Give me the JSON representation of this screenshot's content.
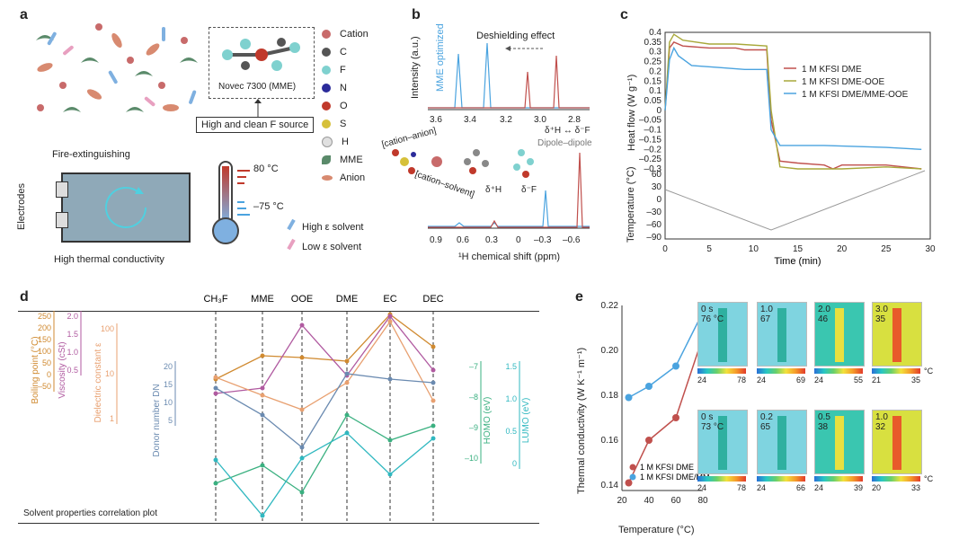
{
  "panel_a": {
    "letter": "a",
    "legend": [
      "Cation",
      "C",
      "F",
      "N",
      "O",
      "S",
      "H",
      "MME",
      "Anion",
      "High ε solvent",
      "Low ε solvent"
    ],
    "legend_colors": [
      "#c86a6a",
      "#555555",
      "#7fd1cf",
      "#2b2b9a",
      "#c0392b",
      "#d6c03a",
      "#e0e0e0",
      "#5a8a6a",
      "#d88a70",
      "#7fb0e0",
      "#e8a0c0"
    ],
    "molecule_label": "Novec 7300 (MME)",
    "f_source": "High and clean F source",
    "fire": "Fire-extinguishing",
    "electrodes": "Electrodes",
    "temp_high": "80 °C",
    "temp_low": "–75 °C",
    "thermal": "High thermal conductivity"
  },
  "panel_b": {
    "letter": "b",
    "ylabel": "Intensity (a.u.)",
    "mme_opt": "MME optimized",
    "deshield": "Deshielding effect",
    "top_ticks": [
      "3.6",
      "3.4",
      "3.2",
      "3.0",
      "2.8"
    ],
    "bottom_ticks": [
      "0.9",
      "0.6",
      "0.3",
      "0",
      "–0.3",
      "–0.6"
    ],
    "xlabel": "¹H chemical shift (ppm)",
    "cation_anion": "[cation–anion]",
    "cation_solvent": "[cation–solvent]",
    "dipole": "Dipole–dipole",
    "dh": "δ⁺H",
    "df": "δ⁻F",
    "dhdf": "δ⁺H ↔ δ⁻F"
  },
  "panel_c": {
    "letter": "c",
    "ylabel_top": "Heat flow (W g⁻¹)",
    "ylabel_bottom": "Temperature (°C)",
    "xlabel": "Time (min)",
    "yticks_top": [
      "0.4",
      "0.35",
      "0.3",
      "0.25",
      "0.2",
      "0.15",
      "0.1",
      "0.05",
      "0",
      "–0.05",
      "–0.1",
      "–0.15",
      "–0.2",
      "–0.25",
      "–0.3"
    ],
    "yticks_bottom": [
      "60",
      "30",
      "0",
      "–30",
      "–60",
      "–90"
    ],
    "xticks": [
      "0",
      "5",
      "10",
      "15",
      "20",
      "25",
      "30"
    ],
    "legend": [
      "1 M KFSI DME",
      "1 M KFSI DME-OOE",
      "1 M KFSI DME/MME-OOE"
    ],
    "colors": [
      "#c0504d",
      "#a8a83a",
      "#4aa3df"
    ]
  },
  "panel_d": {
    "letter": "d",
    "solvents": [
      "CH₃F",
      "MME",
      "OOE",
      "DME",
      "EC",
      "DEC"
    ],
    "axes": [
      "Boiling point (°C)",
      "Viscosity (cSt)",
      "Dielectric constant ε",
      "Donor number DN",
      "HOMO (eV)",
      "LUMO (eV)"
    ],
    "bp_ticks": [
      "250",
      "200",
      "150",
      "100",
      "50",
      "0",
      "–50"
    ],
    "visc_ticks": [
      "2.0",
      "1.5",
      "1.0",
      "0.5"
    ],
    "eps_ticks": [
      "100",
      "10",
      "1"
    ],
    "dn_ticks": [
      "20",
      "15",
      "10",
      "5"
    ],
    "homo_ticks": [
      "–7",
      "–8",
      "–9",
      "–10"
    ],
    "lumo_ticks": [
      "1.5",
      "1.0",
      "0.5",
      "0"
    ],
    "caption": "Solvent properties correlation plot"
  },
  "panel_e": {
    "letter": "e",
    "ylabel": "Thermal conductivity (W K⁻¹ m⁻¹)",
    "xlabel": "Temperature (°C)",
    "legend": [
      "1 M KFSI DME",
      "1 M KFSI DME/MME-OOE"
    ],
    "yticks": [
      "0.22",
      "0.20",
      "0.18",
      "0.16",
      "0.14"
    ],
    "xticks": [
      "20",
      "40",
      "60",
      "80"
    ],
    "heat_top": [
      {
        "t": "0 s",
        "v": "76 °C",
        "lo": "24",
        "hi": "78"
      },
      {
        "t": "1.0",
        "v": "67",
        "lo": "24",
        "hi": "69"
      },
      {
        "t": "2.0",
        "v": "46",
        "lo": "24",
        "hi": "55"
      },
      {
        "t": "3.0",
        "v": "35",
        "lo": "21",
        "hi": "35"
      }
    ],
    "heat_bottom": [
      {
        "t": "0 s",
        "v": "73 °C",
        "lo": "24",
        "hi": "78"
      },
      {
        "t": "0.2",
        "v": "65",
        "lo": "24",
        "hi": "66"
      },
      {
        "t": "0.5",
        "v": "38",
        "lo": "24",
        "hi": "39"
      },
      {
        "t": "1.0",
        "v": "32",
        "lo": "20",
        "hi": "33"
      }
    ],
    "unit": "°C"
  },
  "chart_data": [
    {
      "type": "line",
      "panel": "c",
      "xlabel": "Time (min)",
      "ylabel": "Heat flow (W g⁻¹)",
      "xlim": [
        0,
        30
      ],
      "ylim": [
        -0.3,
        0.4
      ],
      "series": [
        {
          "name": "1 M KFSI DME",
          "x": [
            0,
            0.5,
            1,
            2,
            5,
            8,
            9,
            11.5,
            12,
            13,
            15,
            18,
            19,
            20,
            25,
            29
          ],
          "y": [
            0,
            0.32,
            0.35,
            0.33,
            0.32,
            0.32,
            0.31,
            0.31,
            -0.05,
            -0.26,
            -0.27,
            -0.28,
            -0.3,
            -0.28,
            -0.28,
            -0.3
          ]
        },
        {
          "name": "1 M KFSI DME-OOE",
          "x": [
            0,
            0.5,
            1,
            2,
            5,
            8,
            11.5,
            12,
            13,
            15,
            18,
            20,
            25,
            29
          ],
          "y": [
            0,
            0.35,
            0.39,
            0.36,
            0.34,
            0.34,
            0.33,
            0.0,
            -0.29,
            -0.3,
            -0.3,
            -0.3,
            -0.29,
            -0.3
          ]
        },
        {
          "name": "1 M KFSI DME/MME-OOE",
          "x": [
            0,
            0.5,
            1,
            1.5,
            3,
            6,
            9,
            11.5,
            12,
            13,
            18,
            25,
            29
          ],
          "y": [
            0,
            0.26,
            0.32,
            0.28,
            0.23,
            0.22,
            0.21,
            0.21,
            -0.1,
            -0.18,
            -0.18,
            -0.19,
            -0.2
          ]
        }
      ]
    },
    {
      "type": "line",
      "panel": "e",
      "xlabel": "Temperature (°C)",
      "ylabel": "Thermal conductivity (W K⁻¹ m⁻¹)",
      "xlim": [
        20,
        80
      ],
      "ylim": [
        0.14,
        0.22
      ],
      "series": [
        {
          "name": "1 M KFSI DME",
          "x": [
            25,
            40,
            60,
            80
          ],
          "y": [
            0.141,
            0.16,
            0.17,
            0.206
          ]
        },
        {
          "name": "1 M KFSI DME/MME-OOE",
          "x": [
            25,
            40,
            60,
            80
          ],
          "y": [
            0.179,
            0.184,
            0.193,
            0.217
          ]
        }
      ]
    }
  ]
}
